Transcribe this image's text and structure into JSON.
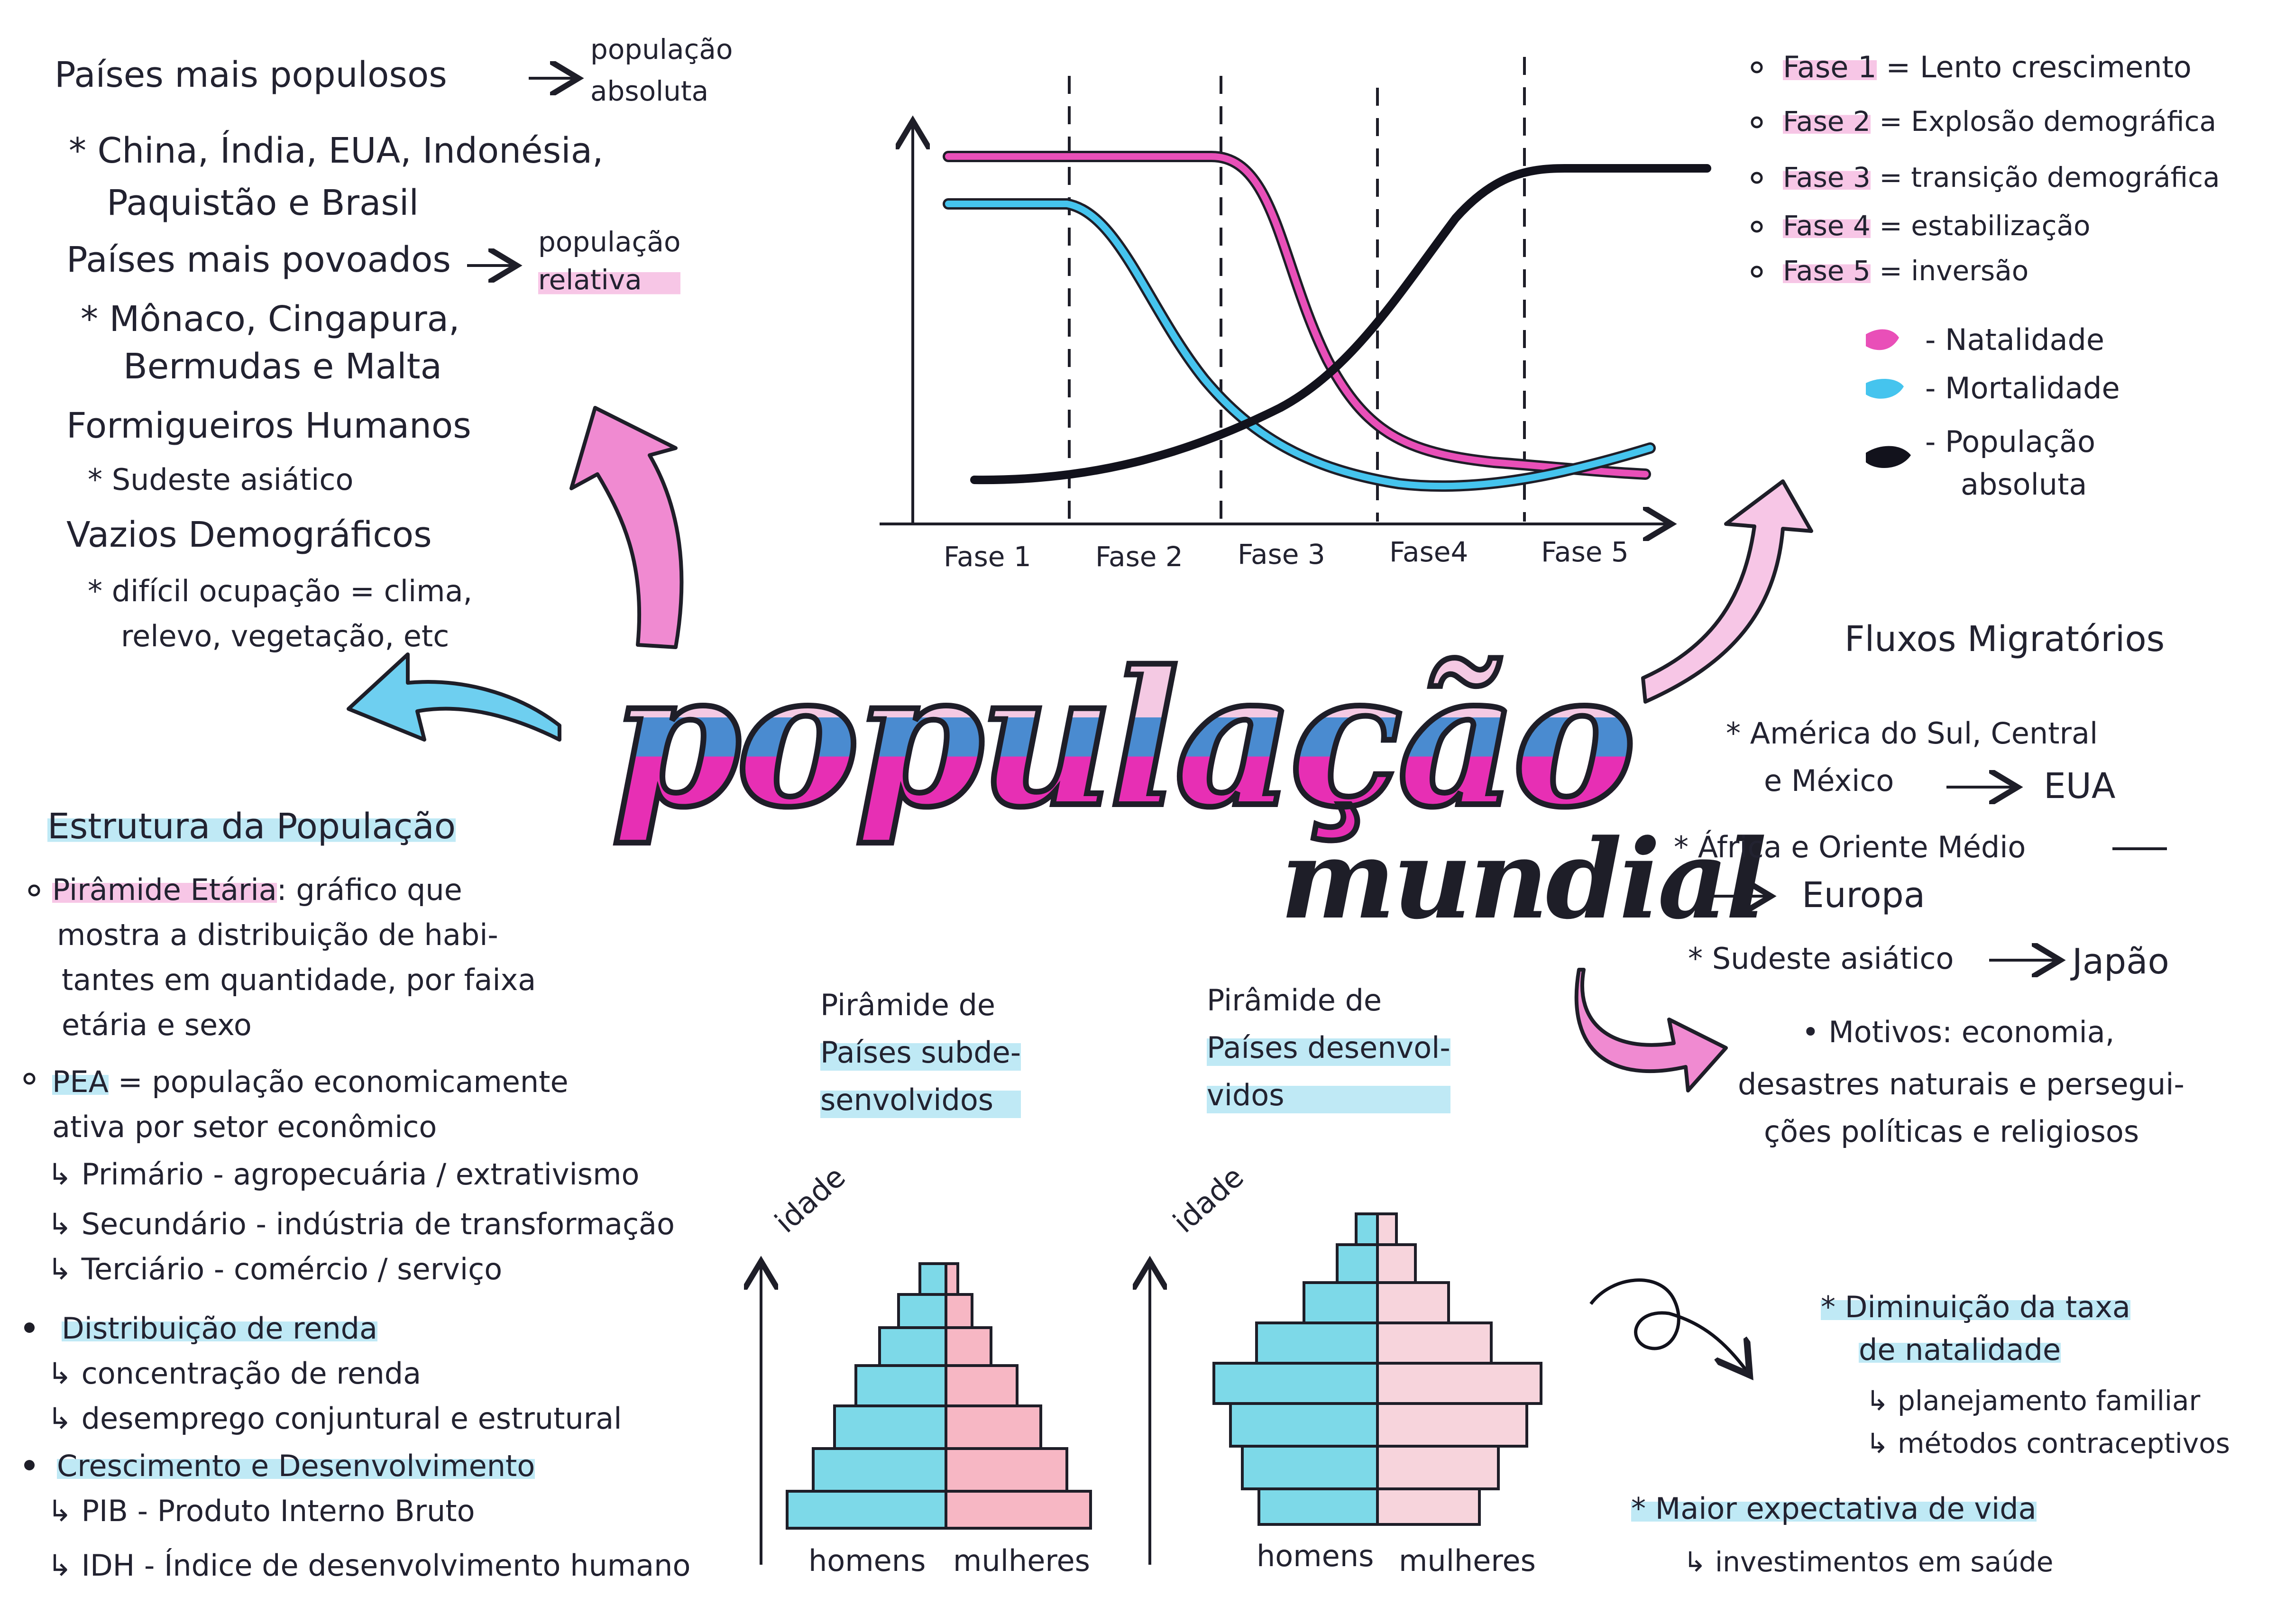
{
  "left_top": {
    "line1": "Países mais populosos",
    "line1_result": [
      "população",
      "absoluta"
    ],
    "line2": "* China, Índia, EUA, Indonésia,",
    "line3": "Paquistão e Brasil",
    "line4": "Países mais povoados",
    "line4_result": [
      "população",
      "relativa"
    ],
    "line5": "* Mônaco, Cingapura,",
    "line6": "Bermudas e Malta",
    "line7": "Formigueiros Humanos",
    "line8": "* Sudeste asiático",
    "line9": "Vazios Demográficos",
    "line10": "* difícil ocupação = clima,",
    "line11": "relevo, vegetação, etc"
  },
  "transition_chart": {
    "phase_labels": [
      "Fase 1",
      "Fase 2",
      "Fase 3",
      "Fase4",
      "Fase 5"
    ]
  },
  "phases": [
    {
      "label": "Fase 1",
      "text": "= Lento crescimento"
    },
    {
      "label": "Fase 2",
      "text": "= Explosão demográfica"
    },
    {
      "label": "Fase 3",
      "text": "= transição demográfica"
    },
    {
      "label": "Fase 4",
      "text": "= estabilização"
    },
    {
      "label": "Fase 5",
      "text": "= inversão"
    }
  ],
  "legend": [
    {
      "text": "- Natalidade",
      "color": "#e94fb8"
    },
    {
      "text": "- Mortalidade",
      "color": "#45c4ee"
    },
    {
      "text": "- População",
      "text2": "absoluta",
      "color": "#12121c"
    }
  ],
  "title": {
    "main": "população",
    "sub": "mundial"
  },
  "fluxos": {
    "heading": "Fluxos Migratórios",
    "l1": "* América do Sul, Central",
    "l2a": "e México",
    "l2b": "EUA",
    "l3": "* África e Oriente Médio",
    "l4": "Europa",
    "l5a": "* Sudeste asiático",
    "l5b": "Japão",
    "l6": "• Motivos: economia,",
    "l7": "desastres naturais e persegui-",
    "l8": "ções políticas e religiosos"
  },
  "estrutura": {
    "heading": "Estrutura da População",
    "p1_label": "Pirâmide Etária",
    "p1_text": ": gráfico que",
    "p1_l2": "mostra a distribuição de habi-",
    "p1_l3": "tantes em quantidade, por faixa",
    "p1_l4": "etária e sexo",
    "pea_label": "PEA",
    "pea_text": "= população economicamente",
    "pea_l2": "ativa por setor econômico",
    "pea_s1": "↳ Primário - agropecuária / extrativismo",
    "pea_s2": "↳ Secundário - indústria de transformação",
    "pea_s3": "↳ Terciário - comércio / serviço",
    "dist_label": "Distribuição de renda",
    "dist_s1": "↳ concentração de renda",
    "dist_s2": "↳ desemprego conjuntural e estrutural",
    "cres_label": "Crescimento e Desenvolvimento",
    "cres_s1": "↳ PIB - Produto Interno Bruto",
    "cres_s2": "↳ IDH - Índice de desenvolvimento humano"
  },
  "pyramid_sub": {
    "title": [
      "Pirâmide de",
      "Países subde-",
      "senvolvidos"
    ],
    "axis": "idade",
    "men": "homens",
    "women": "mulheres"
  },
  "pyramid_dev": {
    "title": [
      "Pirâmide de",
      "Países desenvol-",
      "vidos"
    ],
    "axis": "idade",
    "men": "homens",
    "women": "mulheres"
  },
  "natalidade": {
    "l1": "* Diminuição da taxa",
    "l2": "de natalidade",
    "s1": "↳ planejamento familiar",
    "s2": "↳ métodos contraceptivos",
    "l3": "* Maior expectativa de vida",
    "s3": "↳ investimentos em saúde"
  }
}
